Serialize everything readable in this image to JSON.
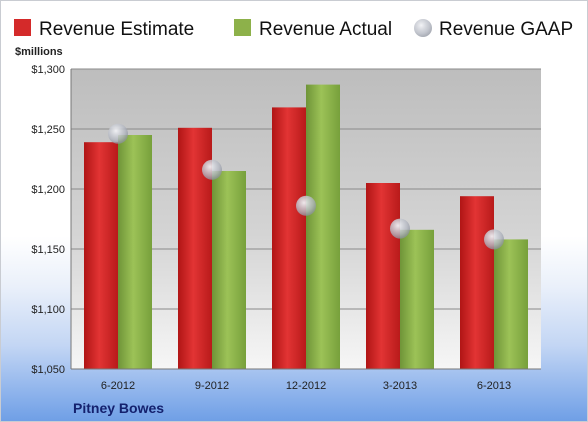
{
  "chart_data": {
    "type": "bar",
    "unit_label": "$millions",
    "categories": [
      "6-2012",
      "9-2012",
      "12-2012",
      "3-2013",
      "6-2013"
    ],
    "series": [
      {
        "name": "Revenue Estimate",
        "kind": "bar",
        "color": "#d42a2a",
        "values": [
          1239,
          1251,
          1268,
          1205,
          1194
        ]
      },
      {
        "name": "Revenue Actual",
        "kind": "bar",
        "color": "#8db14a",
        "values": [
          1245,
          1215,
          1287,
          1166,
          1158
        ]
      },
      {
        "name": "Revenue GAAP",
        "kind": "marker",
        "color": "#b8bcc6",
        "values": [
          1246,
          1216,
          1186,
          1167,
          1158
        ]
      }
    ],
    "ylim": [
      1050,
      1300
    ],
    "yticks": [
      1050,
      1100,
      1150,
      1200,
      1250,
      1300
    ],
    "ytick_labels": [
      "$1,050",
      "$1,100",
      "$1,150",
      "$1,200",
      "$1,250",
      "$1,300"
    ],
    "grid": true,
    "legend_position": "top",
    "company": "Pitney Bowes"
  }
}
